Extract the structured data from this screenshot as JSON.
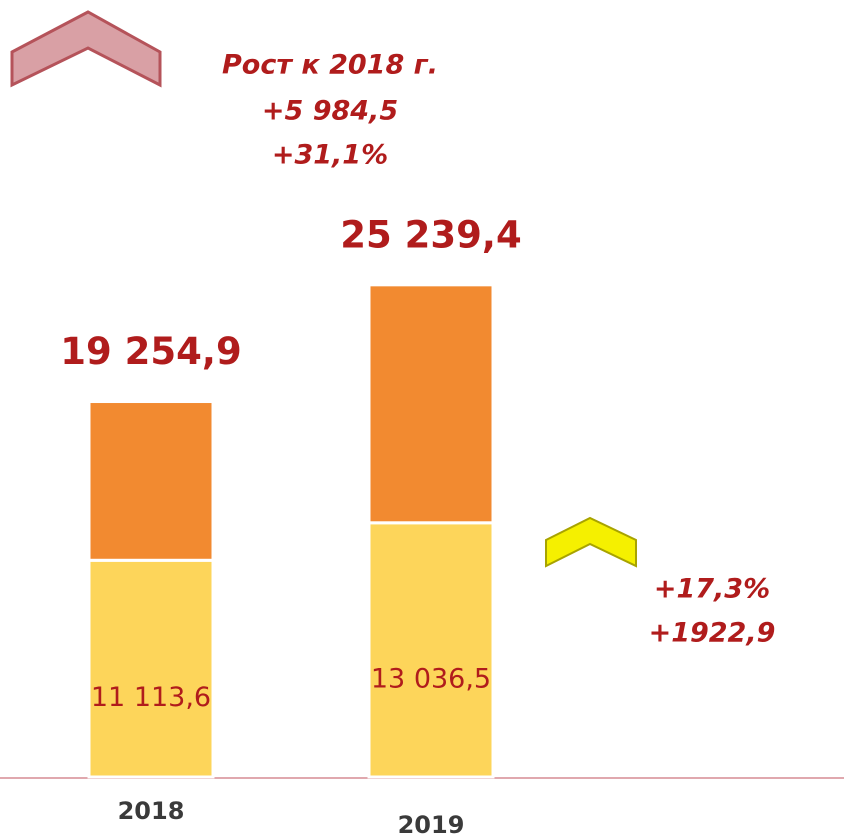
{
  "chart_data": {
    "type": "bar",
    "stacked": true,
    "categories": [
      "2018",
      "2019"
    ],
    "series": [
      {
        "color": "#fdd55a",
        "values": [
          11113.6,
          13036.5
        ],
        "value_labels": [
          "11 113,6",
          "13 036,5"
        ]
      },
      {
        "color": "#f28a30",
        "values": [
          8141.3,
          12202.9
        ]
      }
    ],
    "totals": [
      19254.9,
      25239.4
    ],
    "total_labels": [
      "19 254,9",
      "25 239,4"
    ],
    "ylim": [
      0,
      26000
    ],
    "annotations": [
      "Рост к 2018 г.",
      "+5 984,5",
      "+31,1%",
      "+17,3%",
      "+1922,9"
    ]
  }
}
